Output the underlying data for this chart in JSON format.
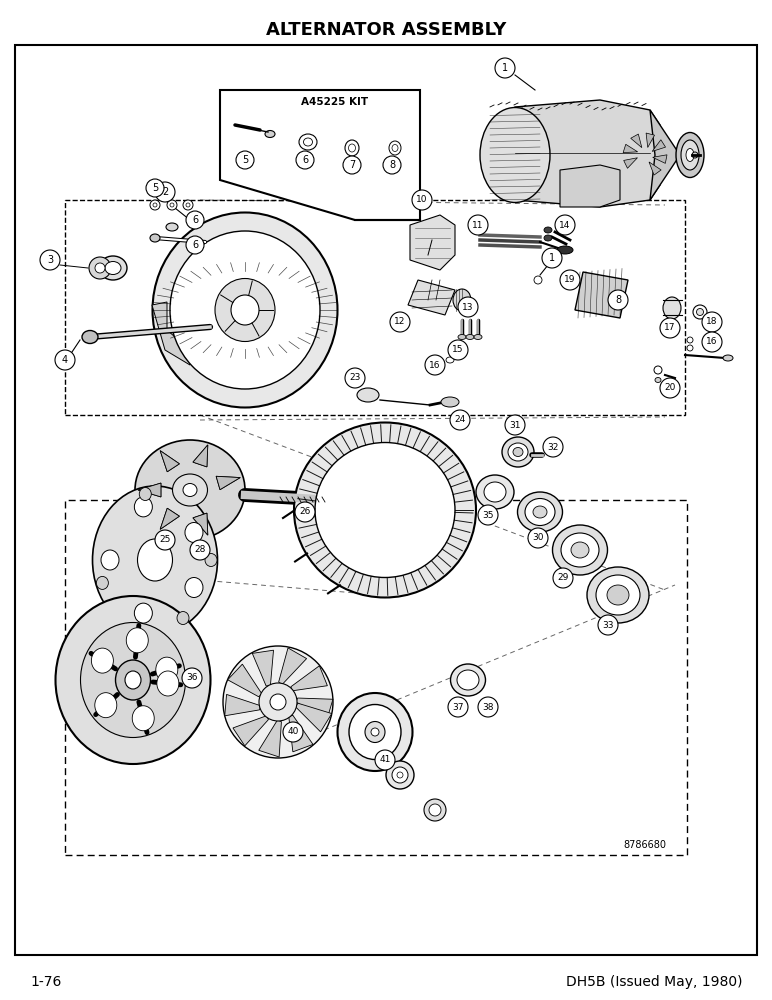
{
  "title": "ALTERNATOR ASSEMBLY",
  "bottom_left": "1-76",
  "bottom_right": "DH5B (Issued May, 1980)",
  "part_number_stamp": "8786680",
  "kit_label": "A45225 KIT",
  "bg_color": "#ffffff",
  "border_color": "#000000",
  "text_color": "#000000",
  "title_fontsize": 13,
  "footer_fontsize": 10,
  "fig_width": 7.72,
  "fig_height": 10.0,
  "dpi": 100
}
